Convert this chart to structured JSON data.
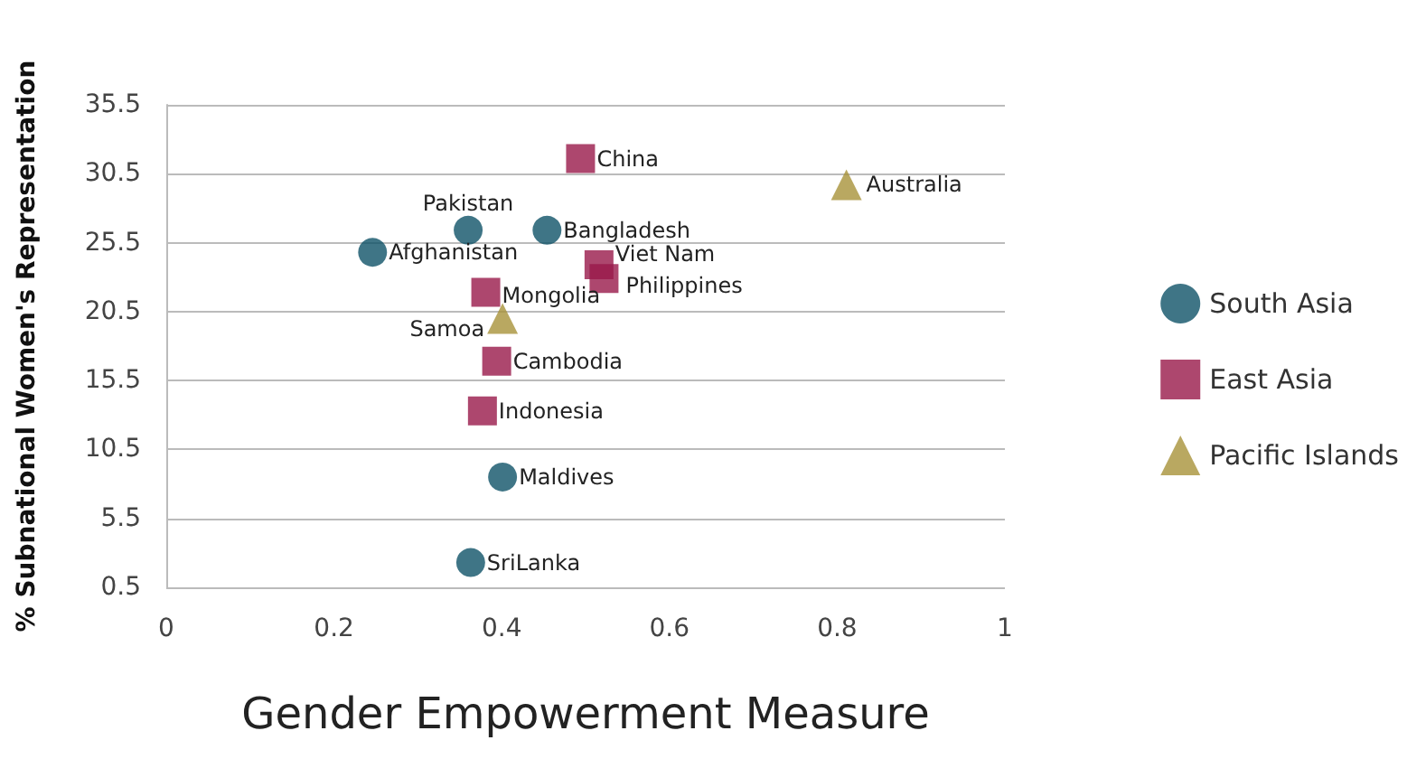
{
  "chart_data": {
    "type": "scatter",
    "xlabel": "Gender Empowerment Measure",
    "ylabel": "% Subnational Women's Representation",
    "xlim": [
      0,
      1
    ],
    "xticks": [
      0,
      0.2,
      0.4,
      0.6,
      0.8,
      1
    ],
    "ylim": [
      0.5,
      35.5
    ],
    "yticks": [
      0.5,
      5.5,
      10.5,
      15.5,
      20.5,
      25.5,
      30.5,
      35.5
    ],
    "grid": "y",
    "legend": "right",
    "series": [
      {
        "name": "South Asia",
        "color": "#0f5368",
        "marker": "circle",
        "x": [
          0.246,
          0.36,
          0.454,
          0.401,
          0.363
        ],
        "values": [
          24.8,
          26.4,
          26.4,
          8.5,
          2.3
        ]
      },
      {
        "name": "East Asia",
        "color": "#99194a",
        "marker": "square",
        "x": [
          0.494,
          0.516,
          0.522,
          0.381,
          0.394,
          0.377
        ],
        "values": [
          31.6,
          23.9,
          22.9,
          21.9,
          16.9,
          13.3
        ]
      },
      {
        "name": "Pacific Islands",
        "color": "#a8923a",
        "marker": "triangle",
        "x": [
          0.811,
          0.401
        ],
        "values": [
          29.7,
          20.0
        ]
      }
    ],
    "annotations": [
      {
        "text": "Afghanistan",
        "x": 0.246,
        "y": 24.8
      },
      {
        "text": "Pakistan",
        "x": 0.36,
        "y": 26.4
      },
      {
        "text": "Bangladesh",
        "x": 0.454,
        "y": 26.4
      },
      {
        "text": "Maldives",
        "x": 0.401,
        "y": 8.5
      },
      {
        "text": "SriLanka",
        "x": 0.363,
        "y": 2.3
      },
      {
        "text": "China",
        "x": 0.494,
        "y": 31.6
      },
      {
        "text": "Viet Nam",
        "x": 0.516,
        "y": 23.9
      },
      {
        "text": "Philippines",
        "x": 0.522,
        "y": 22.9
      },
      {
        "text": "Mongolia",
        "x": 0.381,
        "y": 21.9
      },
      {
        "text": "Cambodia",
        "x": 0.394,
        "y": 16.9
      },
      {
        "text": "Indonesia",
        "x": 0.377,
        "y": 13.3
      },
      {
        "text": "Australia",
        "x": 0.811,
        "y": 29.7
      },
      {
        "text": "Samoa",
        "x": 0.401,
        "y": 20.0
      }
    ]
  }
}
